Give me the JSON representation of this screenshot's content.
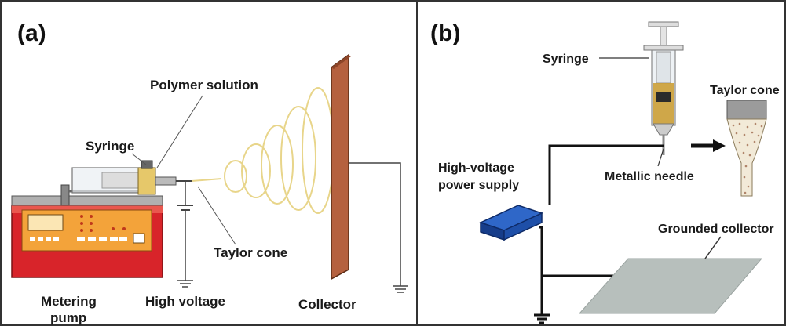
{
  "panel_a": {
    "letter": "(a)",
    "labels": {
      "polymer_solution": "Polymer solution",
      "syringe": "Syringe",
      "taylor_cone": "Taylor cone",
      "metering_pump_line1": "Metering",
      "metering_pump_line2": "pump",
      "high_voltage": "High voltage",
      "collector": "Collector"
    },
    "colors": {
      "pump_body": "#d8242a",
      "pump_panel": "#f3a33a",
      "collector": "#b5613f",
      "jet": "#e8d58a"
    }
  },
  "panel_b": {
    "letter": "(b)",
    "labels": {
      "syringe": "Syringe",
      "taylor_cone": "Taylor cone",
      "power_supply_line1": "High-voltage",
      "power_supply_line2": "power supply",
      "metallic_needle": "Metallic needle",
      "grounded_collector": "Grounded collector"
    },
    "colors": {
      "power_supply": "#1e4fa8",
      "collector_plate": "#b7bfbc",
      "arrow": "#111111"
    }
  }
}
